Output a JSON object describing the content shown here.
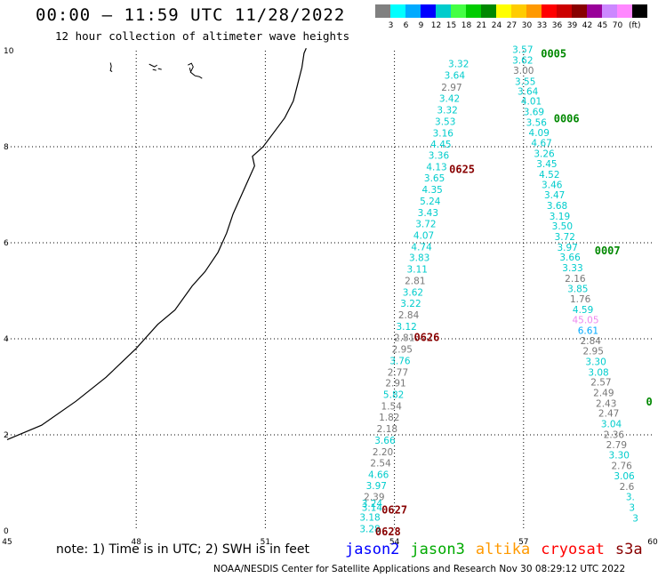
{
  "header": {
    "title": "00:00 – 11:59 UTC 11/28/2022",
    "subtitle": "12 hour collection of altimeter wave heights"
  },
  "legend": {
    "colors": [
      "#808080",
      "#00ffff",
      "#00aaff",
      "#0000ff",
      "#00cccc",
      "#44ff44",
      "#00cc00",
      "#008800",
      "#ffff00",
      "#ffcc00",
      "#ff9900",
      "#ff0000",
      "#cc0000",
      "#880000",
      "#990099",
      "#cc88ff",
      "#ff88ff",
      "#000000"
    ],
    "labels": [
      "3",
      "6",
      "9",
      "12",
      "15",
      "18",
      "21",
      "24",
      "27",
      "30",
      "33",
      "36",
      "39",
      "42",
      "45",
      "70"
    ],
    "unit": "(ft)"
  },
  "map": {
    "lon_ticks": [
      "45",
      "48",
      "51",
      "54",
      "57",
      "60"
    ],
    "lat_ticks": [
      "10",
      "8",
      "6",
      "4",
      "2",
      "0"
    ],
    "tracks": [
      {
        "color_class": "cyan-track",
        "points": [
          {
            "lon": 55.49,
            "lat": 9.73,
            "v": "3.32",
            "c": "#00cccc"
          },
          {
            "lon": 55.4,
            "lat": 9.49,
            "v": "3.64",
            "c": "#00cccc"
          },
          {
            "lon": 55.33,
            "lat": 9.24,
            "v": "2.97",
            "c": "#777777"
          },
          {
            "lon": 55.28,
            "lat": 9.01,
            "v": "3.42",
            "c": "#00cccc"
          },
          {
            "lon": 55.23,
            "lat": 8.77,
            "v": "3.32",
            "c": "#00cccc"
          },
          {
            "lon": 55.18,
            "lat": 8.53,
            "v": "3.53",
            "c": "#00cccc"
          },
          {
            "lon": 55.13,
            "lat": 8.29,
            "v": "3.16",
            "c": "#00cccc"
          },
          {
            "lon": 55.08,
            "lat": 8.06,
            "v": "4.45",
            "c": "#00cccc"
          },
          {
            "lon": 55.03,
            "lat": 7.82,
            "v": "3.36",
            "c": "#00cccc"
          },
          {
            "lon": 54.98,
            "lat": 7.58,
            "v": "4.13",
            "c": "#00cccc"
          },
          {
            "lon": 54.93,
            "lat": 7.35,
            "v": "3.65",
            "c": "#00cccc"
          },
          {
            "lon": 54.88,
            "lat": 7.11,
            "v": "4.35",
            "c": "#00cccc"
          },
          {
            "lon": 54.83,
            "lat": 6.87,
            "v": "5.24",
            "c": "#00cccc"
          },
          {
            "lon": 54.78,
            "lat": 6.63,
            "v": "3.43",
            "c": "#00cccc"
          },
          {
            "lon": 54.73,
            "lat": 6.4,
            "v": "3.72",
            "c": "#00cccc"
          },
          {
            "lon": 54.68,
            "lat": 6.16,
            "v": "4.07",
            "c": "#00cccc"
          },
          {
            "lon": 54.63,
            "lat": 5.92,
            "v": "4.74",
            "c": "#00cccc"
          },
          {
            "lon": 54.58,
            "lat": 5.69,
            "v": "3.83",
            "c": "#00cccc"
          },
          {
            "lon": 54.53,
            "lat": 5.45,
            "v": "3.11",
            "c": "#00cccc"
          },
          {
            "lon": 54.48,
            "lat": 5.21,
            "v": "2.81",
            "c": "#777777"
          },
          {
            "lon": 54.43,
            "lat": 4.97,
            "v": "3.62",
            "c": "#00cccc"
          },
          {
            "lon": 54.38,
            "lat": 4.74,
            "v": "3.22",
            "c": "#00cccc"
          },
          {
            "lon": 54.33,
            "lat": 4.5,
            "v": "2.84",
            "c": "#777777"
          },
          {
            "lon": 54.28,
            "lat": 4.26,
            "v": "3.12",
            "c": "#00cccc"
          },
          {
            "lon": 54.23,
            "lat": 4.03,
            "v": "2.81",
            "c": "#777777"
          },
          {
            "lon": 54.18,
            "lat": 3.79,
            "v": "2.95",
            "c": "#777777"
          },
          {
            "lon": 54.13,
            "lat": 3.55,
            "v": "3.76",
            "c": "#00cccc"
          },
          {
            "lon": 54.08,
            "lat": 3.31,
            "v": "2.77",
            "c": "#777777"
          },
          {
            "lon": 54.03,
            "lat": 3.08,
            "v": "2.91",
            "c": "#777777"
          },
          {
            "lon": 53.98,
            "lat": 2.84,
            "v": "5.82",
            "c": "#00cccc"
          },
          {
            "lon": 53.93,
            "lat": 2.6,
            "v": "1.54",
            "c": "#777777"
          },
          {
            "lon": 53.88,
            "lat": 2.37,
            "v": "1.82",
            "c": "#777777"
          },
          {
            "lon": 53.83,
            "lat": 2.13,
            "v": "2.18",
            "c": "#777777"
          },
          {
            "lon": 53.78,
            "lat": 1.89,
            "v": "3.66",
            "c": "#00cccc"
          },
          {
            "lon": 53.73,
            "lat": 1.65,
            "v": "2.20",
            "c": "#777777"
          },
          {
            "lon": 53.68,
            "lat": 1.42,
            "v": "2.54",
            "c": "#777777"
          },
          {
            "lon": 53.63,
            "lat": 1.18,
            "v": "4.66",
            "c": "#00cccc"
          },
          {
            "lon": 53.58,
            "lat": 0.94,
            "v": "3.97",
            "c": "#00cccc"
          },
          {
            "lon": 53.53,
            "lat": 0.71,
            "v": "2.39",
            "c": "#777777"
          },
          {
            "lon": 53.48,
            "lat": 0.57,
            "v": "3.24",
            "c": "#00cccc"
          },
          {
            "lon": 53.48,
            "lat": 0.49,
            "v": "3.14",
            "c": "#00cccc"
          },
          {
            "lon": 53.43,
            "lat": 0.29,
            "v": "3.18",
            "c": "#00cccc"
          },
          {
            "lon": 53.43,
            "lat": 0.05,
            "v": "3.28",
            "c": "#00cccc"
          }
        ]
      },
      {
        "color_class": "cyan-track",
        "points": [
          {
            "lon": 56.98,
            "lat": 10.03,
            "v": "3.57",
            "c": "#00cccc"
          },
          {
            "lon": 56.98,
            "lat": 9.81,
            "v": "3.62",
            "c": "#00cccc"
          },
          {
            "lon": 57.0,
            "lat": 9.59,
            "v": "3.00",
            "c": "#777777"
          },
          {
            "lon": 57.04,
            "lat": 9.36,
            "v": "3.55",
            "c": "#00cccc"
          },
          {
            "lon": 57.1,
            "lat": 9.16,
            "v": "3.64",
            "c": "#00cccc"
          },
          {
            "lon": 57.18,
            "lat": 8.95,
            "v": "4.01",
            "c": "#00cccc"
          },
          {
            "lon": 57.24,
            "lat": 8.73,
            "v": "3.69",
            "c": "#00cccc"
          },
          {
            "lon": 57.3,
            "lat": 8.51,
            "v": "3.56",
            "c": "#00cccc"
          },
          {
            "lon": 57.36,
            "lat": 8.3,
            "v": "4.09",
            "c": "#00cccc"
          },
          {
            "lon": 57.42,
            "lat": 8.08,
            "v": "4.67",
            "c": "#00cccc"
          },
          {
            "lon": 57.48,
            "lat": 7.86,
            "v": "3.26",
            "c": "#00cccc"
          },
          {
            "lon": 57.54,
            "lat": 7.65,
            "v": "3.45",
            "c": "#00cccc"
          },
          {
            "lon": 57.6,
            "lat": 7.43,
            "v": "4.52",
            "c": "#00cccc"
          },
          {
            "lon": 57.66,
            "lat": 7.21,
            "v": "3.46",
            "c": "#00cccc"
          },
          {
            "lon": 57.72,
            "lat": 7.0,
            "v": "3.47",
            "c": "#00cccc"
          },
          {
            "lon": 57.78,
            "lat": 6.78,
            "v": "3.68",
            "c": "#00cccc"
          },
          {
            "lon": 57.84,
            "lat": 6.56,
            "v": "3.19",
            "c": "#00cccc"
          },
          {
            "lon": 57.9,
            "lat": 6.35,
            "v": "3.50",
            "c": "#00cccc"
          },
          {
            "lon": 57.96,
            "lat": 6.13,
            "v": "3.72",
            "c": "#00cccc"
          },
          {
            "lon": 58.02,
            "lat": 5.91,
            "v": "3.97",
            "c": "#00cccc"
          },
          {
            "lon": 58.08,
            "lat": 5.7,
            "v": "3.66",
            "c": "#00cccc"
          },
          {
            "lon": 58.14,
            "lat": 5.48,
            "v": "3.33",
            "c": "#00cccc"
          },
          {
            "lon": 58.2,
            "lat": 5.26,
            "v": "2.16",
            "c": "#777777"
          },
          {
            "lon": 58.26,
            "lat": 5.05,
            "v": "3.85",
            "c": "#00cccc"
          },
          {
            "lon": 58.32,
            "lat": 4.83,
            "v": "1.76",
            "c": "#777777"
          },
          {
            "lon": 58.38,
            "lat": 4.61,
            "v": "4.59",
            "c": "#00cccc"
          },
          {
            "lon": 58.44,
            "lat": 4.4,
            "v": "45.05",
            "c": "#ee88ee"
          },
          {
            "lon": 58.5,
            "lat": 4.18,
            "v": "6.61",
            "c": "#00aaff"
          },
          {
            "lon": 58.56,
            "lat": 3.96,
            "v": "2.84",
            "c": "#777777"
          },
          {
            "lon": 58.62,
            "lat": 3.75,
            "v": "2.95",
            "c": "#777777"
          },
          {
            "lon": 58.68,
            "lat": 3.53,
            "v": "3.30",
            "c": "#00cccc"
          },
          {
            "lon": 58.74,
            "lat": 3.31,
            "v": "3.08",
            "c": "#00cccc"
          },
          {
            "lon": 58.8,
            "lat": 3.1,
            "v": "2.57",
            "c": "#777777"
          },
          {
            "lon": 58.86,
            "lat": 2.88,
            "v": "2.49",
            "c": "#777777"
          },
          {
            "lon": 58.92,
            "lat": 2.66,
            "v": "2.43",
            "c": "#777777"
          },
          {
            "lon": 58.98,
            "lat": 2.45,
            "v": "2.47",
            "c": "#777777"
          },
          {
            "lon": 59.04,
            "lat": 2.23,
            "v": "3.04",
            "c": "#00cccc"
          },
          {
            "lon": 59.1,
            "lat": 2.01,
            "v": "2.36",
            "c": "#777777"
          },
          {
            "lon": 59.16,
            "lat": 1.8,
            "v": "2.79",
            "c": "#777777"
          },
          {
            "lon": 59.22,
            "lat": 1.58,
            "v": "3.30",
            "c": "#00cccc"
          },
          {
            "lon": 59.28,
            "lat": 1.36,
            "v": "2.76",
            "c": "#777777"
          },
          {
            "lon": 59.34,
            "lat": 1.15,
            "v": "3.06",
            "c": "#00cccc"
          },
          {
            "lon": 59.4,
            "lat": 0.93,
            "v": "2.6",
            "c": "#777777"
          },
          {
            "lon": 59.48,
            "lat": 0.71,
            "v": "3.",
            "c": "#00cccc"
          },
          {
            "lon": 59.52,
            "lat": 0.49,
            "v": "3",
            "c": "#00cccc"
          },
          {
            "lon": 59.6,
            "lat": 0.27,
            "v": "3",
            "c": "#00cccc"
          }
        ]
      }
    ],
    "time_labels": [
      {
        "lon": 57.7,
        "lat": 9.95,
        "text": "0005",
        "c": "#008800"
      },
      {
        "lon": 58.0,
        "lat": 8.6,
        "text": "0006",
        "c": "#008800"
      },
      {
        "lon": 58.95,
        "lat": 5.85,
        "text": "0007",
        "c": "#008800"
      },
      {
        "lon": 59.92,
        "lat": 2.7,
        "text": "0",
        "c": "#008800"
      },
      {
        "lon": 55.57,
        "lat": 7.55,
        "text": "0625",
        "c": "#880000"
      },
      {
        "lon": 54.75,
        "lat": 4.05,
        "text": "0626",
        "c": "#880000"
      },
      {
        "lon": 54.0,
        "lat": 0.45,
        "text": "0627",
        "c": "#880000"
      },
      {
        "lon": 53.85,
        "lat": 0.0,
        "text": "0628",
        "c": "#880000"
      }
    ]
  },
  "footer": {
    "note": "note: 1) Time is in UTC; 2) SWH is in feet",
    "satellites": [
      {
        "name": "jason2",
        "color": "#0000ff"
      },
      {
        "name": "jason3",
        "color": "#00aa00"
      },
      {
        "name": "altika",
        "color": "#ff9900"
      },
      {
        "name": "cryosat",
        "color": "#ff0000"
      },
      {
        "name": "s3a",
        "color": "#880000"
      }
    ],
    "credit": "NOAA/NESDIS Center for Satellite Applications and Research   Nov 30 08:29:12 UTC 2022"
  }
}
